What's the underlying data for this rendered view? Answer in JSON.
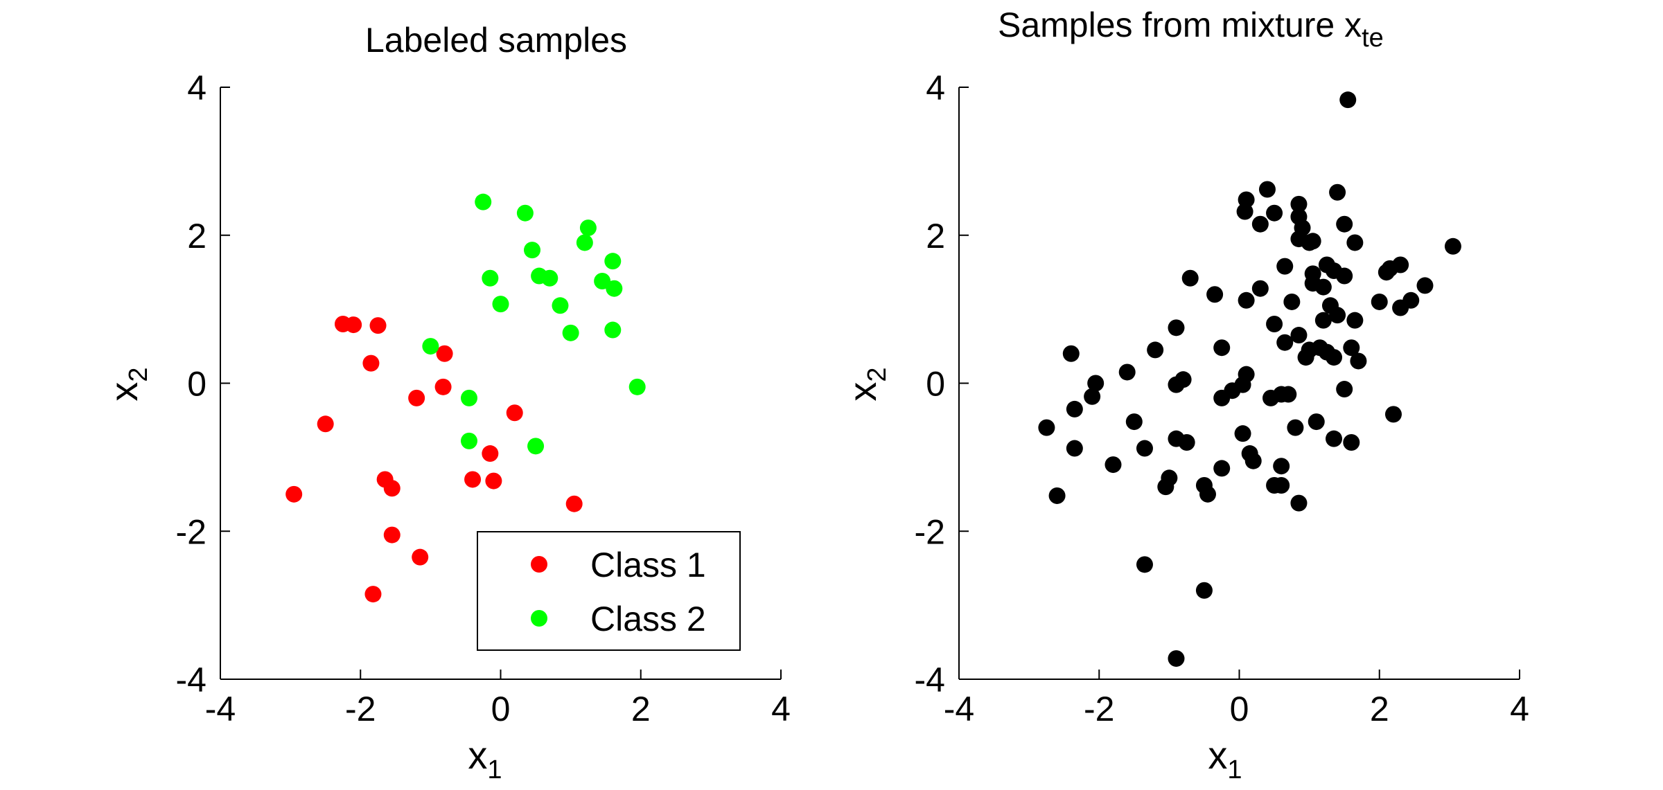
{
  "chart_data": [
    {
      "type": "scatter",
      "title": "Labeled samples",
      "xlabel": "x",
      "xlabel_sub": "1",
      "ylabel": "x",
      "ylabel_sub": "2",
      "xlim": [
        -4,
        4
      ],
      "ylim": [
        -4,
        4
      ],
      "xticks": [
        -4,
        -2,
        0,
        2,
        4
      ],
      "yticks": [
        -4,
        -2,
        0,
        2,
        4
      ],
      "grid": false,
      "legend_position": "bottom-right",
      "series": [
        {
          "name": "Class 1",
          "color": "#ff0000",
          "points": [
            [
              -2.25,
              0.8
            ],
            [
              -2.1,
              0.79
            ],
            [
              -1.75,
              0.78
            ],
            [
              -1.85,
              0.27
            ],
            [
              -1.2,
              -0.2
            ],
            [
              -0.8,
              0.4
            ],
            [
              -0.82,
              -0.05
            ],
            [
              -2.5,
              -0.55
            ],
            [
              -2.95,
              -1.5
            ],
            [
              -1.65,
              -1.3
            ],
            [
              -1.55,
              -1.42
            ],
            [
              -1.55,
              -2.05
            ],
            [
              -1.15,
              -2.35
            ],
            [
              -1.82,
              -2.85
            ],
            [
              -0.4,
              -1.3
            ],
            [
              -0.15,
              -0.95
            ],
            [
              -0.1,
              -1.32
            ],
            [
              0.2,
              -0.4
            ],
            [
              1.05,
              -1.63
            ]
          ]
        },
        {
          "name": "Class 2",
          "color": "#00ff00",
          "points": [
            [
              -0.25,
              2.45
            ],
            [
              0.35,
              2.3
            ],
            [
              1.25,
              2.1
            ],
            [
              1.2,
              1.9
            ],
            [
              0.45,
              1.8
            ],
            [
              1.6,
              1.65
            ],
            [
              -0.15,
              1.42
            ],
            [
              0.55,
              1.45
            ],
            [
              0.7,
              1.42
            ],
            [
              1.45,
              1.38
            ],
            [
              1.62,
              1.28
            ],
            [
              0.0,
              1.07
            ],
            [
              0.85,
              1.05
            ],
            [
              1.0,
              0.68
            ],
            [
              1.6,
              0.72
            ],
            [
              -1.0,
              0.5
            ],
            [
              -0.45,
              -0.2
            ],
            [
              1.95,
              -0.05
            ],
            [
              -0.45,
              -0.78
            ],
            [
              0.5,
              -0.85
            ]
          ]
        }
      ]
    },
    {
      "type": "scatter",
      "title": "Samples from mixture x",
      "title_sub": "te",
      "xlabel": "x",
      "xlabel_sub": "1",
      "ylabel": "x",
      "ylabel_sub": "2",
      "xlim": [
        -4,
        4
      ],
      "ylim": [
        -4,
        4
      ],
      "xticks": [
        -4,
        -2,
        0,
        2,
        4
      ],
      "yticks": [
        -4,
        -2,
        0,
        2,
        4
      ],
      "grid": false,
      "series": [
        {
          "color": "#000000",
          "points": [
            [
              1.55,
              3.83
            ],
            [
              0.4,
              2.62
            ],
            [
              1.4,
              2.58
            ],
            [
              0.1,
              2.48
            ],
            [
              0.08,
              2.32
            ],
            [
              0.3,
              2.15
            ],
            [
              0.5,
              2.3
            ],
            [
              0.85,
              2.42
            ],
            [
              0.85,
              2.25
            ],
            [
              0.9,
              2.1
            ],
            [
              1.5,
              2.15
            ],
            [
              0.85,
              1.95
            ],
            [
              1.0,
              1.9
            ],
            [
              1.05,
              1.92
            ],
            [
              1.65,
              1.9
            ],
            [
              0.65,
              1.58
            ],
            [
              1.25,
              1.6
            ],
            [
              1.35,
              1.52
            ],
            [
              1.05,
              1.48
            ],
            [
              1.5,
              1.45
            ],
            [
              1.05,
              1.35
            ],
            [
              1.2,
              1.3
            ],
            [
              -0.7,
              1.42
            ],
            [
              -0.35,
              1.2
            ],
            [
              0.1,
              1.12
            ],
            [
              0.3,
              1.28
            ],
            [
              0.75,
              1.1
            ],
            [
              1.3,
              1.05
            ],
            [
              1.4,
              0.92
            ],
            [
              1.65,
              0.85
            ],
            [
              0.5,
              0.8
            ],
            [
              1.2,
              0.85
            ],
            [
              0.85,
              0.65
            ],
            [
              0.65,
              0.55
            ],
            [
              1.0,
              0.45
            ],
            [
              1.15,
              0.48
            ],
            [
              1.25,
              0.42
            ],
            [
              0.95,
              0.35
            ],
            [
              1.35,
              0.35
            ],
            [
              1.6,
              0.48
            ],
            [
              1.7,
              0.3
            ],
            [
              2.1,
              1.5
            ],
            [
              2.15,
              1.55
            ],
            [
              2.3,
              1.6
            ],
            [
              2.45,
              1.12
            ],
            [
              2.3,
              1.02
            ],
            [
              2.65,
              1.32
            ],
            [
              2.0,
              1.1
            ],
            [
              3.05,
              1.85
            ],
            [
              1.5,
              -0.08
            ],
            [
              2.2,
              -0.42
            ],
            [
              1.35,
              -0.75
            ],
            [
              1.6,
              -0.8
            ],
            [
              1.1,
              -0.52
            ],
            [
              0.8,
              -0.6
            ],
            [
              -0.9,
              0.75
            ],
            [
              -0.25,
              0.48
            ],
            [
              0.1,
              0.12
            ],
            [
              0.05,
              -0.02
            ],
            [
              -0.1,
              -0.1
            ],
            [
              -0.25,
              -0.2
            ],
            [
              0.45,
              -0.2
            ],
            [
              0.6,
              -0.15
            ],
            [
              0.7,
              -0.15
            ],
            [
              -0.8,
              0.05
            ],
            [
              -0.9,
              -0.02
            ],
            [
              -1.2,
              0.45
            ],
            [
              -1.6,
              0.15
            ],
            [
              -2.05,
              0.0
            ],
            [
              -2.1,
              -0.18
            ],
            [
              -2.4,
              0.4
            ],
            [
              -2.35,
              -0.35
            ],
            [
              -2.75,
              -0.6
            ],
            [
              -1.5,
              -0.52
            ],
            [
              -2.35,
              -0.88
            ],
            [
              -1.35,
              -0.88
            ],
            [
              -0.9,
              -0.75
            ],
            [
              -0.75,
              -0.8
            ],
            [
              0.05,
              -0.68
            ],
            [
              0.15,
              -0.95
            ],
            [
              0.2,
              -1.05
            ],
            [
              -0.25,
              -1.15
            ],
            [
              -1.0,
              -1.28
            ],
            [
              -1.05,
              -1.4
            ],
            [
              -1.8,
              -1.1
            ],
            [
              -2.6,
              -1.52
            ],
            [
              -0.5,
              -1.38
            ],
            [
              -0.45,
              -1.5
            ],
            [
              0.5,
              -1.38
            ],
            [
              0.6,
              -1.12
            ],
            [
              0.6,
              -1.38
            ],
            [
              0.85,
              -1.62
            ],
            [
              -1.35,
              -2.45
            ],
            [
              -0.5,
              -2.8
            ],
            [
              -0.9,
              -3.72
            ]
          ]
        }
      ]
    }
  ]
}
